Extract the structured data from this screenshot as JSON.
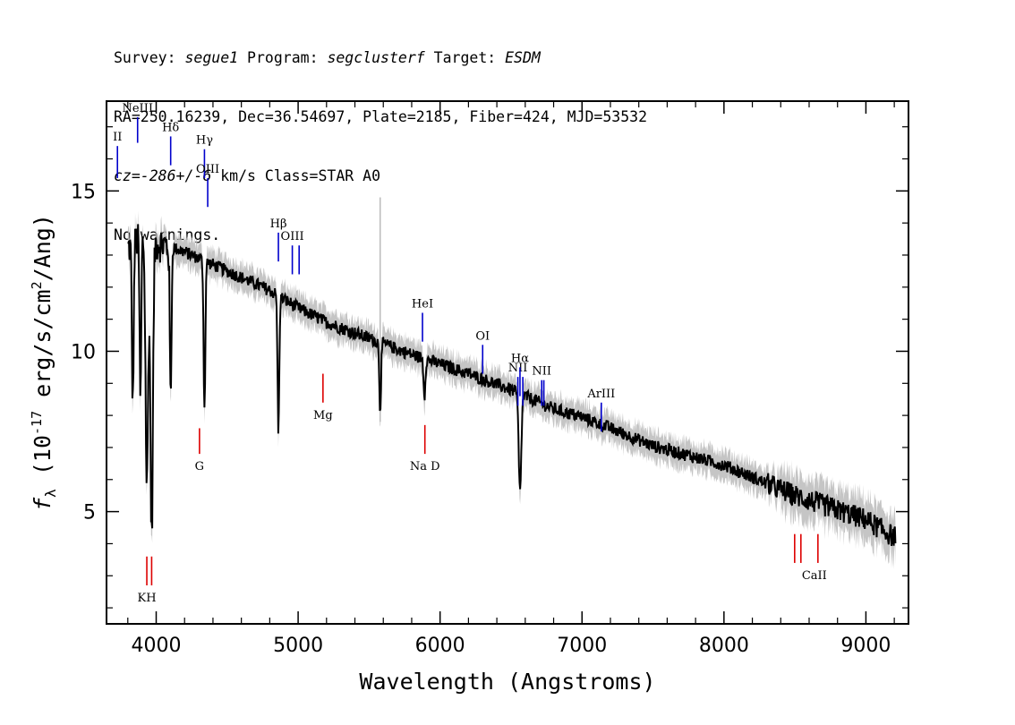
{
  "header": {
    "survey_label": "Survey: ",
    "survey": "segue1",
    "program_label": " Program: ",
    "program": "segclusterf",
    "target_label": " Target: ",
    "target": "ESDM",
    "line2": "RA=250.16239, Dec=36.54697, Plate=2185, Fiber=424, MJD=53532",
    "cz": "cz=-286+/-6",
    "cz_units": " km/s Class=STAR A0",
    "warnings": "No warnings."
  },
  "chart_data": {
    "type": "line",
    "xlabel": "Wavelength (Angstroms)",
    "ylabel": "f_λ (10^-17 erg/s/cm^2/Ang)",
    "xlim": [
      3650,
      9300
    ],
    "ylim": [
      1.5,
      17.8
    ],
    "x_ticks": [
      4000,
      5000,
      6000,
      7000,
      8000,
      9000
    ],
    "y_ticks": [
      5,
      10,
      15
    ],
    "series": [
      {
        "kind": "flux",
        "color": "#000000",
        "continuum": [
          [
            3800,
            13.2
          ],
          [
            3900,
            13.6
          ],
          [
            4000,
            13.4
          ],
          [
            4200,
            13.1
          ],
          [
            4400,
            12.7
          ],
          [
            4600,
            12.3
          ],
          [
            4800,
            11.9
          ],
          [
            5000,
            11.35
          ],
          [
            5200,
            10.9
          ],
          [
            5500,
            10.4
          ],
          [
            5800,
            9.9
          ],
          [
            6000,
            9.6
          ],
          [
            6200,
            9.3
          ],
          [
            6500,
            8.8
          ],
          [
            6800,
            8.2
          ],
          [
            7000,
            7.95
          ],
          [
            7200,
            7.6
          ],
          [
            7500,
            7.05
          ],
          [
            8000,
            6.45
          ],
          [
            8500,
            5.5
          ],
          [
            9000,
            4.75
          ],
          [
            9200,
            4.2
          ]
        ],
        "absorption": [
          [
            3835,
            8.3
          ],
          [
            3889,
            8.5
          ],
          [
            3934,
            5.8
          ],
          [
            3968,
            4.2
          ],
          [
            4102,
            8.6
          ],
          [
            4340,
            8.2
          ],
          [
            4861,
            7.5
          ],
          [
            5578,
            8.2
          ],
          [
            5890,
            8.6
          ],
          [
            6563,
            5.6
          ]
        ]
      },
      {
        "kind": "error_band",
        "color": "#bbbbbb"
      }
    ],
    "emission_lines": [
      {
        "label": "II",
        "x": 3727,
        "y_top": 16.4,
        "y_bot": 15.4
      },
      {
        "label": "NeIII",
        "x": 3869,
        "y_top": 17.3,
        "y_bot": 16.5
      },
      {
        "label": "Hδ",
        "x": 4102,
        "y_top": 16.7,
        "y_bot": 15.8
      },
      {
        "label": "Hγ",
        "x": 4340,
        "y_top": 16.3,
        "y_bot": 15.4
      },
      {
        "label": "OIII",
        "x": 4363,
        "y_top": 15.4,
        "y_bot": 14.5
      },
      {
        "label": "Hβ",
        "x": 4861,
        "y_top": 13.7,
        "y_bot": 12.8
      },
      {
        "label": "OIII",
        "x": 4959,
        "y_top": 13.3,
        "y_bot": 12.4
      },
      {
        "label": "",
        "x": 5007,
        "y_top": 13.3,
        "y_bot": 12.4
      },
      {
        "label": "HeI",
        "x": 5876,
        "y_top": 11.2,
        "y_bot": 10.3
      },
      {
        "label": "OI",
        "x": 6300,
        "y_top": 10.2,
        "y_bot": 9.3
      },
      {
        "label": "NII",
        "x": 6548,
        "y_top": 9.2,
        "y_bot": 8.3
      },
      {
        "label": "Hα",
        "x": 6563,
        "y_top": 9.5,
        "y_bot": 8.6
      },
      {
        "label": "",
        "x": 6583,
        "y_top": 9.2,
        "y_bot": 8.3
      },
      {
        "label": "NII",
        "x": 6716,
        "y_top": 9.1,
        "y_bot": 8.3
      },
      {
        "label": "",
        "x": 6731,
        "y_top": 9.1,
        "y_bot": 8.3
      },
      {
        "label": "ArIII",
        "x": 7136,
        "y_top": 8.4,
        "y_bot": 7.5
      }
    ],
    "absorption_lines": [
      {
        "label": "KH",
        "x": 3934,
        "y_top": 3.6,
        "y_bot": 2.7
      },
      {
        "label": "",
        "x": 3968,
        "y_top": 3.6,
        "y_bot": 2.7
      },
      {
        "label": "G",
        "x": 4305,
        "y_top": 7.6,
        "y_bot": 6.8
      },
      {
        "label": "Mg",
        "x": 5175,
        "y_top": 9.3,
        "y_bot": 8.4
      },
      {
        "label": "Na D",
        "x": 5893,
        "y_top": 7.7,
        "y_bot": 6.8
      },
      {
        "label": "CaII",
        "x": 8498,
        "y_top": 4.3,
        "y_bot": 3.4
      },
      {
        "label": "",
        "x": 8542,
        "y_top": 4.3,
        "y_bot": 3.4
      },
      {
        "label": "",
        "x": 8662,
        "y_top": 4.3,
        "y_bot": 3.4
      }
    ],
    "colors": {
      "emission": "#0000cc",
      "absorption": "#dd0000",
      "flux": "#000000",
      "error": "#bbbbbb"
    }
  }
}
